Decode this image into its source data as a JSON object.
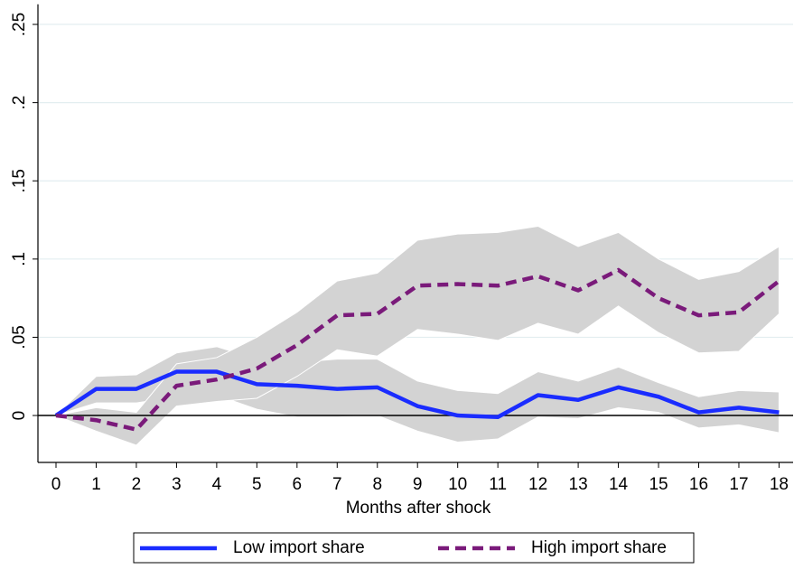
{
  "chart_data": {
    "type": "line",
    "x_label": "Months after shock",
    "x": [
      0,
      1,
      2,
      3,
      4,
      5,
      6,
      7,
      8,
      9,
      10,
      11,
      12,
      13,
      14,
      15,
      16,
      17,
      18
    ],
    "xlim": [
      -0.45,
      18.35
    ],
    "xticks": [
      0,
      1,
      2,
      3,
      4,
      5,
      6,
      7,
      8,
      9,
      10,
      11,
      12,
      13,
      14,
      15,
      16,
      17,
      18
    ],
    "ylim": [
      -0.03,
      0.26
    ],
    "yticks": [
      0,
      {
        "value": 0.05,
        "label": ".05"
      },
      {
        "value": 0.1,
        "label": ".1"
      },
      {
        "value": 0.15,
        "label": ".15"
      },
      {
        "value": 0.2,
        "label": ".2"
      },
      {
        "value": 0.25,
        "label": ".25"
      }
    ],
    "grid": true,
    "band_color": "#d3d3d3",
    "legend": "bottom",
    "series": [
      {
        "name": "Low import share",
        "color": "#1a2cff",
        "dash": false,
        "values": [
          0,
          0.017,
          0.017,
          0.028,
          0.028,
          0.02,
          0.019,
          0.017,
          0.018,
          0.006,
          0,
          -0.001,
          0.013,
          0.01,
          0.018,
          0.012,
          0.002,
          0.005,
          0.002
        ],
        "upper": [
          0,
          0.025,
          0.026,
          0.04,
          0.044,
          0.036,
          0.034,
          0.036,
          0.036,
          0.022,
          0.016,
          0.014,
          0.028,
          0.022,
          0.031,
          0.021,
          0.012,
          0.016,
          0.015
        ],
        "lower": [
          0,
          0.008,
          0.008,
          0.012,
          0.013,
          0.004,
          -0.001,
          -0.001,
          0,
          -0.01,
          -0.017,
          -0.015,
          -0.001,
          -0.002,
          0.005,
          0.002,
          -0.008,
          -0.006,
          -0.011
        ]
      },
      {
        "name": "High import share",
        "color": "#7a1a7a",
        "dash": true,
        "values": [
          0,
          -0.003,
          -0.009,
          0.019,
          0.023,
          0.03,
          0.045,
          0.064,
          0.065,
          0.083,
          0.084,
          0.083,
          0.089,
          0.08,
          0.093,
          0.075,
          0.064,
          0.066,
          0.086
        ],
        "upper": [
          0,
          0.005,
          0.002,
          0.033,
          0.037,
          0.05,
          0.066,
          0.086,
          0.091,
          0.112,
          0.116,
          0.117,
          0.121,
          0.108,
          0.117,
          0.1,
          0.087,
          0.092,
          0.108
        ],
        "lower": [
          0,
          -0.01,
          -0.019,
          0.006,
          0.009,
          0.011,
          0.025,
          0.042,
          0.038,
          0.055,
          0.052,
          0.048,
          0.059,
          0.052,
          0.07,
          0.053,
          0.04,
          0.041,
          0.065
        ]
      }
    ]
  }
}
